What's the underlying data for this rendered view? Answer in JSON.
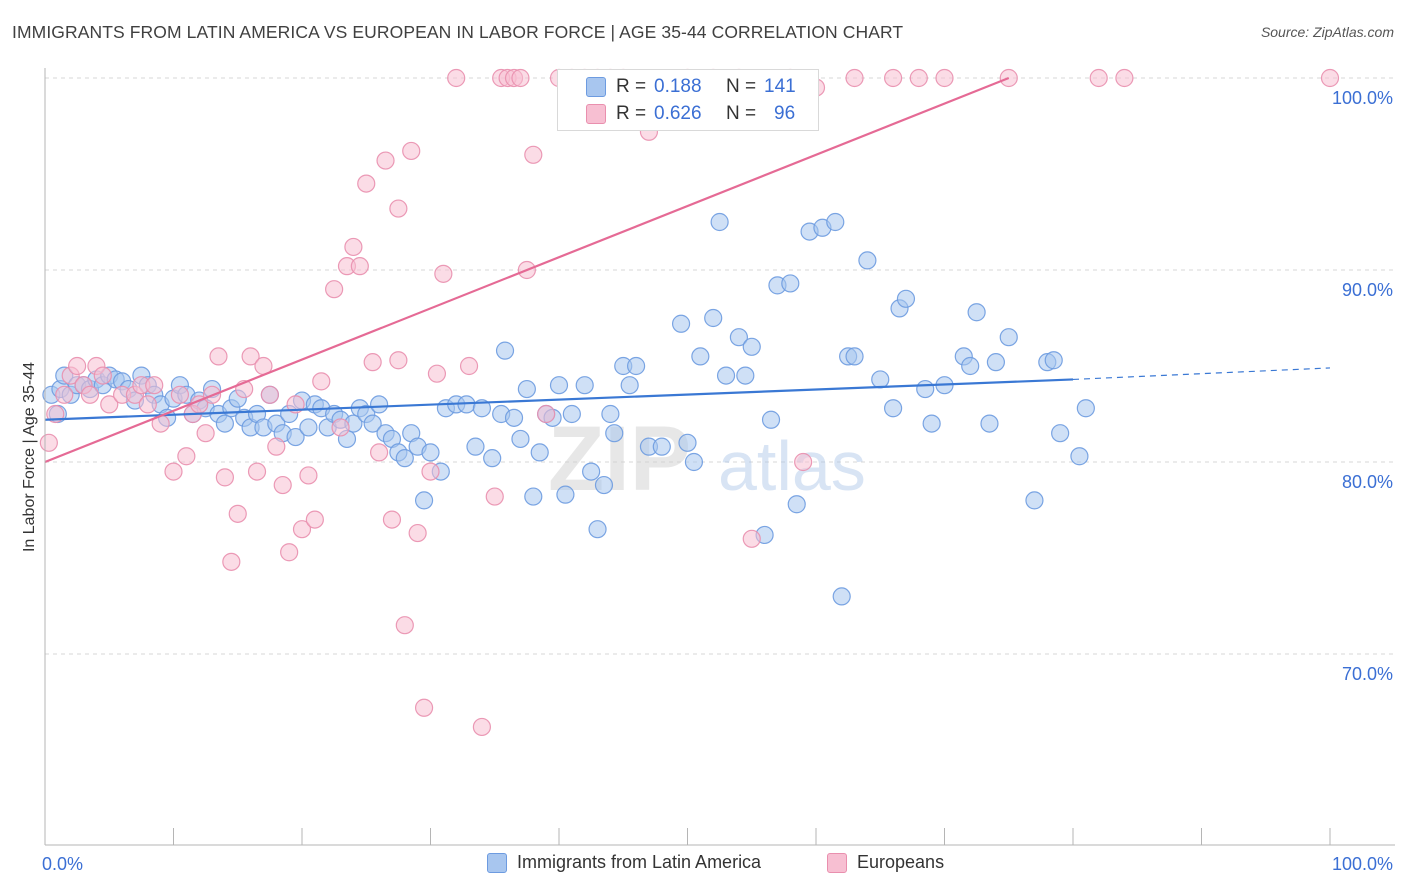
{
  "title": "IMMIGRANTS FROM LATIN AMERICA VS EUROPEAN IN LABOR FORCE | AGE 35-44 CORRELATION CHART",
  "source": "Source: ZipAtlas.com",
  "watermark": {
    "part1": "ZIP",
    "part2": "atlas"
  },
  "stats": {
    "r_label": "R =",
    "n_label": "N =",
    "rows": [
      {
        "r": "0.188",
        "n": "141",
        "color": "#a8c6ef",
        "border": "#6d9be0"
      },
      {
        "r": "0.626",
        "n": "96",
        "color": "#f7bfd2",
        "border": "#e98fae"
      }
    ]
  },
  "legend": {
    "items": [
      {
        "label": "Immigrants from Latin America",
        "color": "#a8c6ef",
        "border": "#6d9be0"
      },
      {
        "label": "Europeans",
        "color": "#f7bfd2",
        "border": "#e98fae"
      }
    ]
  },
  "chart_data": {
    "type": "scatter",
    "title": "IMMIGRANTS FROM LATIN AMERICA VS EUROPEAN IN LABOR FORCE | AGE 35-44 CORRELATION CHART",
    "xlabel": "",
    "ylabel": "In Labor Force | Age 35-44",
    "xlim": [
      0,
      100
    ],
    "ylim": [
      61,
      102
    ],
    "x_tick_labels": [
      "0.0%",
      "100.0%"
    ],
    "y_ticks": [
      70,
      80,
      90,
      100
    ],
    "y_tick_labels": [
      "70.0%",
      "80.0%",
      "90.0%",
      "100.0%"
    ],
    "grid": true,
    "series": [
      {
        "name": "Immigrants from Latin America",
        "color": "#a8c6ef",
        "stroke": "#6d9be0",
        "trend": {
          "x0": 0,
          "y0": 82.2,
          "x1": 80,
          "y1": 84.3,
          "dash_to_x": 100,
          "dash_to_y": 84.9,
          "color": "#3a78d4"
        },
        "points": [
          [
            0.5,
            83.5
          ],
          [
            1,
            82.5
          ],
          [
            1.2,
            83.8
          ],
          [
            1.5,
            84.5
          ],
          [
            2,
            83.5
          ],
          [
            2.5,
            84
          ],
          [
            3,
            84
          ],
          [
            3.5,
            83.8
          ],
          [
            4,
            84.3
          ],
          [
            4.5,
            84
          ],
          [
            5,
            84.5
          ],
          [
            5.5,
            84.3
          ],
          [
            6,
            84.2
          ],
          [
            6.5,
            83.8
          ],
          [
            7,
            83.2
          ],
          [
            7.5,
            84.5
          ],
          [
            8,
            84
          ],
          [
            8.5,
            83.5
          ],
          [
            9,
            83
          ],
          [
            9.5,
            82.3
          ],
          [
            10,
            83.3
          ],
          [
            10.5,
            84
          ],
          [
            11,
            83.5
          ],
          [
            11.5,
            82.5
          ],
          [
            12,
            83.2
          ],
          [
            12.5,
            82.8
          ],
          [
            13,
            83.8
          ],
          [
            13.5,
            82.5
          ],
          [
            14,
            82
          ],
          [
            14.5,
            82.8
          ],
          [
            15,
            83.3
          ],
          [
            15.5,
            82.3
          ],
          [
            16,
            81.8
          ],
          [
            16.5,
            82.5
          ],
          [
            17,
            81.8
          ],
          [
            17.5,
            83.5
          ],
          [
            18,
            82
          ],
          [
            18.5,
            81.5
          ],
          [
            19,
            82.5
          ],
          [
            19.5,
            81.3
          ],
          [
            20,
            83.2
          ],
          [
            20.5,
            81.8
          ],
          [
            21,
            83
          ],
          [
            21.5,
            82.8
          ],
          [
            22,
            81.8
          ],
          [
            22.5,
            82.5
          ],
          [
            23,
            82.2
          ],
          [
            23.5,
            81.2
          ],
          [
            24,
            82
          ],
          [
            24.5,
            82.8
          ],
          [
            25,
            82.5
          ],
          [
            25.5,
            82
          ],
          [
            26,
            83
          ],
          [
            26.5,
            81.5
          ],
          [
            27,
            81.2
          ],
          [
            27.5,
            80.5
          ],
          [
            28,
            80.2
          ],
          [
            28.5,
            81.5
          ],
          [
            29,
            80.8
          ],
          [
            29.5,
            78
          ],
          [
            30,
            80.5
          ],
          [
            30.8,
            79.5
          ],
          [
            31.2,
            82.8
          ],
          [
            32,
            83
          ],
          [
            32.8,
            83
          ],
          [
            33.5,
            80.8
          ],
          [
            34,
            82.8
          ],
          [
            34.8,
            80.2
          ],
          [
            35.5,
            82.5
          ],
          [
            35.8,
            85.8
          ],
          [
            36.5,
            82.3
          ],
          [
            37,
            81.2
          ],
          [
            37.5,
            83.8
          ],
          [
            38,
            78.2
          ],
          [
            38.5,
            80.5
          ],
          [
            39,
            82.5
          ],
          [
            39.5,
            82.3
          ],
          [
            40,
            84
          ],
          [
            40.5,
            78.3
          ],
          [
            41,
            82.5
          ],
          [
            42,
            84
          ],
          [
            42.5,
            79.5
          ],
          [
            43,
            76.5
          ],
          [
            43.5,
            78.8
          ],
          [
            44,
            82.5
          ],
          [
            44.3,
            81.5
          ],
          [
            45,
            85
          ],
          [
            45.5,
            84
          ],
          [
            46,
            85
          ],
          [
            47,
            80.8
          ],
          [
            48,
            80.8
          ],
          [
            49.5,
            87.2
          ],
          [
            50,
            81
          ],
          [
            50.5,
            80
          ],
          [
            51,
            85.5
          ],
          [
            52,
            87.5
          ],
          [
            52.5,
            92.5
          ],
          [
            53,
            84.5
          ],
          [
            54,
            86.5
          ],
          [
            54.5,
            84.5
          ],
          [
            55,
            86
          ],
          [
            56,
            76.2
          ],
          [
            56.5,
            82.2
          ],
          [
            57,
            89.2
          ],
          [
            58,
            89.3
          ],
          [
            58.5,
            77.8
          ],
          [
            59.5,
            92
          ],
          [
            60.5,
            92.2
          ],
          [
            61.5,
            92.5
          ],
          [
            62,
            73
          ],
          [
            62.5,
            85.5
          ],
          [
            63,
            85.5
          ],
          [
            64,
            90.5
          ],
          [
            65,
            84.3
          ],
          [
            66,
            82.8
          ],
          [
            66.5,
            88
          ],
          [
            67,
            88.5
          ],
          [
            68.5,
            83.8
          ],
          [
            69,
            82
          ],
          [
            70,
            84
          ],
          [
            71.5,
            85.5
          ],
          [
            72,
            85
          ],
          [
            72.5,
            87.8
          ],
          [
            73.5,
            82
          ],
          [
            74,
            85.2
          ],
          [
            75,
            86.5
          ],
          [
            77,
            78
          ],
          [
            78,
            85.2
          ],
          [
            78.5,
            85.3
          ],
          [
            79,
            81.5
          ],
          [
            80.5,
            80.3
          ],
          [
            81,
            82.8
          ]
        ]
      },
      {
        "name": "Europeans",
        "color": "#f7bfd2",
        "stroke": "#e98fae",
        "trend": {
          "x0": 0,
          "y0": 80,
          "x1": 75,
          "y1": 100,
          "color": "#e56a95"
        },
        "points": [
          [
            0.3,
            81
          ],
          [
            0.8,
            82.5
          ],
          [
            1.5,
            83.5
          ],
          [
            2,
            84.5
          ],
          [
            2.5,
            85
          ],
          [
            3,
            84
          ],
          [
            3.5,
            83.5
          ],
          [
            4,
            85
          ],
          [
            4.5,
            84.5
          ],
          [
            5,
            83
          ],
          [
            6,
            83.5
          ],
          [
            7,
            83.5
          ],
          [
            7.5,
            84
          ],
          [
            8,
            83
          ],
          [
            8.5,
            84
          ],
          [
            9,
            82
          ],
          [
            10,
            79.5
          ],
          [
            10.5,
            83.5
          ],
          [
            11,
            80.3
          ],
          [
            11.5,
            82.5
          ],
          [
            12,
            83
          ],
          [
            12.5,
            81.5
          ],
          [
            13,
            83.5
          ],
          [
            13.5,
            85.5
          ],
          [
            14,
            79.2
          ],
          [
            14.5,
            74.8
          ],
          [
            15,
            77.3
          ],
          [
            15.5,
            83.8
          ],
          [
            16,
            85.5
          ],
          [
            16.5,
            79.5
          ],
          [
            17,
            85
          ],
          [
            17.5,
            83.5
          ],
          [
            18,
            80.8
          ],
          [
            18.5,
            78.8
          ],
          [
            19,
            75.3
          ],
          [
            19.5,
            83
          ],
          [
            20,
            76.5
          ],
          [
            20.5,
            79.3
          ],
          [
            21,
            77
          ],
          [
            21.5,
            84.2
          ],
          [
            22.5,
            89
          ],
          [
            23,
            81.8
          ],
          [
            23.5,
            90.2
          ],
          [
            24,
            91.2
          ],
          [
            24.5,
            90.2
          ],
          [
            25,
            94.5
          ],
          [
            25.5,
            85.2
          ],
          [
            26,
            80.5
          ],
          [
            26.5,
            95.7
          ],
          [
            27,
            77
          ],
          [
            27.5,
            93.2
          ],
          [
            27.5,
            85.3
          ],
          [
            28,
            71.5
          ],
          [
            28.5,
            96.2
          ],
          [
            29,
            76.3
          ],
          [
            29.5,
            67.2
          ],
          [
            30,
            79.5
          ],
          [
            30.5,
            84.6
          ],
          [
            31,
            89.8
          ],
          [
            32,
            100
          ],
          [
            33,
            85
          ],
          [
            34,
            66.2
          ],
          [
            35,
            78.2
          ],
          [
            35.5,
            100
          ],
          [
            36,
            100
          ],
          [
            36.5,
            100
          ],
          [
            37,
            100
          ],
          [
            37.5,
            90
          ],
          [
            38,
            96
          ],
          [
            39,
            82.5
          ],
          [
            40,
            100
          ],
          [
            41,
            100
          ],
          [
            42,
            100
          ],
          [
            43,
            100
          ],
          [
            44,
            100
          ],
          [
            45,
            100
          ],
          [
            47,
            97.2
          ],
          [
            50,
            100
          ],
          [
            52,
            100
          ],
          [
            54,
            100
          ],
          [
            55,
            76
          ],
          [
            58,
            100
          ],
          [
            59,
            80
          ],
          [
            60,
            99.5
          ],
          [
            63,
            100
          ],
          [
            66,
            100
          ],
          [
            68,
            100
          ],
          [
            70,
            100
          ],
          [
            75,
            100
          ],
          [
            82,
            100
          ],
          [
            84,
            100
          ],
          [
            100,
            100
          ]
        ]
      }
    ]
  }
}
